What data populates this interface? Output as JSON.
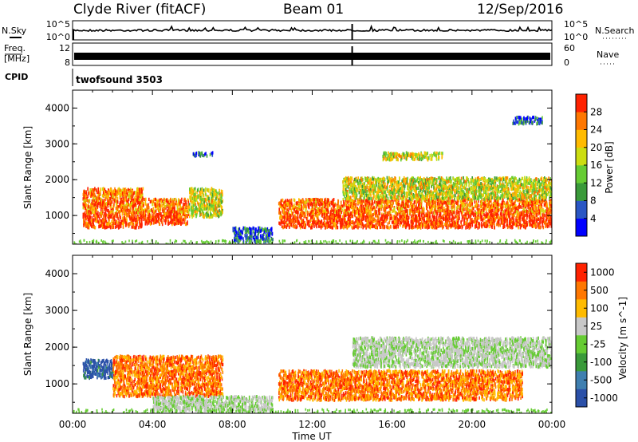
{
  "header": {
    "station": "Clyde River (fitACF)",
    "beam": "Beam 01",
    "date": "12/Sep/2016"
  },
  "chart_data": [
    {
      "type": "line",
      "panel": "noise",
      "left_label": "N.Sky",
      "right_label": "N.Search",
      "left_ticks": [
        "10^5",
        "10^0"
      ],
      "right_ticks": [
        "10^5",
        "10^0"
      ],
      "left_scale": "log",
      "line_color": "#000000"
    },
    {
      "type": "line",
      "panel": "frequency",
      "left_label_lines": [
        "Freq.",
        "[MHz]"
      ],
      "right_label": "Nave",
      "left_ticks": [
        "12",
        "8"
      ],
      "right_ticks": [
        "60",
        "0"
      ],
      "line_color": "#000000"
    },
    {
      "type": "table",
      "panel": "cpid",
      "label": "CPID",
      "value": "twofsound 3503"
    },
    {
      "type": "heatmap",
      "panel": "power",
      "xlabel": "",
      "ylabel": "Slant Range [km]",
      "ylim": [
        200,
        4500
      ],
      "yticks": [
        1000,
        2000,
        3000,
        4000
      ],
      "xlim": [
        "00:00",
        "24:00"
      ],
      "colorbar": {
        "label": "Power [dB]",
        "ticks": [
          "28",
          "24",
          "20",
          "16",
          "12",
          "8",
          "4"
        ],
        "colors": [
          "#0000ff",
          "#2a56c4",
          "#3a9a3a",
          "#66cc33",
          "#ccdd11",
          "#ffbb00",
          "#ff7700",
          "#ff2200"
        ]
      },
      "scatter_regions": [
        {
          "t": [
            0.5,
            3.5
          ],
          "r": [
            700,
            1800
          ],
          "level": "high"
        },
        {
          "t": [
            3.5,
            5.8
          ],
          "r": [
            800,
            1500
          ],
          "level": "high"
        },
        {
          "t": [
            5.8,
            7.5
          ],
          "r": [
            1000,
            1800
          ],
          "level": "mid"
        },
        {
          "t": [
            8.0,
            10.0
          ],
          "r": [
            300,
            700
          ],
          "level": "low"
        },
        {
          "t": [
            10.3,
            24.0
          ],
          "r": [
            700,
            1500
          ],
          "level": "high"
        },
        {
          "t": [
            13.5,
            24.0
          ],
          "r": [
            1500,
            2100
          ],
          "level": "mid"
        },
        {
          "t": [
            15.5,
            18.5
          ],
          "r": [
            2600,
            2800
          ],
          "level": "mid"
        },
        {
          "t": [
            6.0,
            7.0
          ],
          "r": [
            2700,
            2800
          ],
          "level": "low"
        },
        {
          "t": [
            22.0,
            23.5
          ],
          "r": [
            3600,
            3800
          ],
          "level": "low"
        }
      ]
    },
    {
      "type": "heatmap",
      "panel": "velocity",
      "xlabel": "Time UT",
      "ylabel": "Slant Range [km]",
      "ylim": [
        200,
        4500
      ],
      "yticks": [
        1000,
        2000,
        3000,
        4000
      ],
      "xticks": [
        "00:00",
        "04:00",
        "08:00",
        "12:00",
        "16:00",
        "20:00",
        "00:00"
      ],
      "colorbar": {
        "label": "Velocity [m s^-1]",
        "ticks": [
          "1000",
          "500",
          "100",
          "25",
          "-25",
          "-100",
          "-500",
          "-1000"
        ],
        "colors": [
          "#2b50a8",
          "#3f7fb0",
          "#3a9a3a",
          "#66cc33",
          "#c8c8c8",
          "#ffbb00",
          "#ff7700",
          "#ff2200"
        ]
      },
      "scatter_regions": [
        {
          "t": [
            0.5,
            2.0
          ],
          "r": [
            1200,
            1700
          ],
          "level": "positive"
        },
        {
          "t": [
            2.0,
            7.5
          ],
          "r": [
            700,
            1800
          ],
          "level": "negative"
        },
        {
          "t": [
            4.0,
            10.0
          ],
          "r": [
            300,
            700
          ],
          "level": "ground"
        },
        {
          "t": [
            10.3,
            22.5
          ],
          "r": [
            600,
            1400
          ],
          "level": "negative"
        },
        {
          "t": [
            14.0,
            24.0
          ],
          "r": [
            1500,
            2300
          ],
          "level": "ground"
        }
      ]
    }
  ]
}
